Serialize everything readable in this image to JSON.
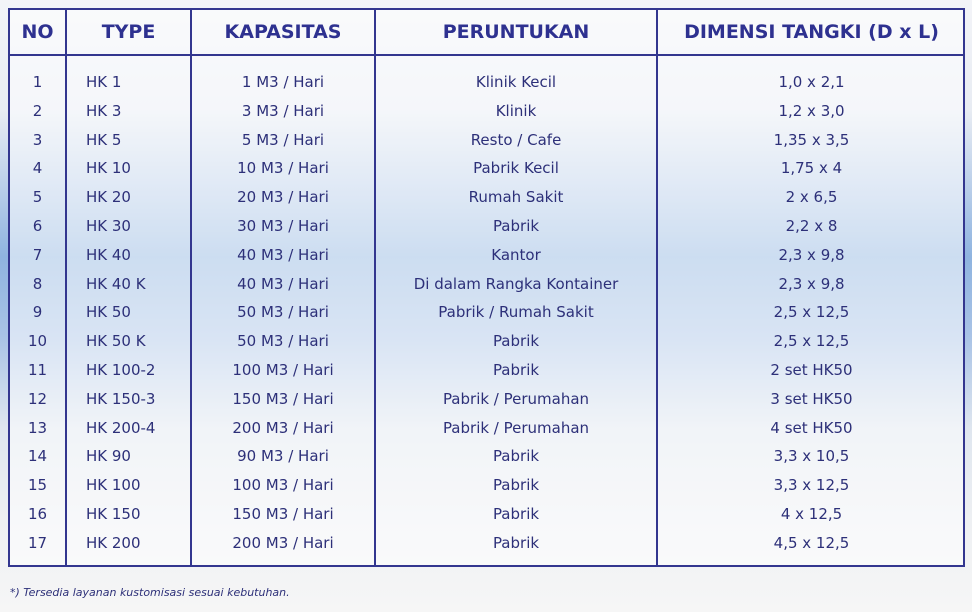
{
  "table": {
    "headers": [
      "NO",
      "TYPE",
      "KAPASITAS",
      "PERUNTUKAN",
      "DIMENSI TANGKI (D x L)"
    ],
    "rows": [
      [
        "1",
        "HK 1",
        "1 M3 / Hari",
        "Klinik Kecil",
        "1,0 x 2,1"
      ],
      [
        "2",
        "HK 3",
        "3 M3 / Hari",
        "Klinik",
        "1,2 x 3,0"
      ],
      [
        "3",
        "HK 5",
        "5 M3 / Hari",
        "Resto / Cafe",
        "1,35 x 3,5"
      ],
      [
        "4",
        "HK 10",
        "10 M3 / Hari",
        "Pabrik Kecil",
        "1,75 x 4"
      ],
      [
        "5",
        "HK 20",
        "20 M3 / Hari",
        "Rumah Sakit",
        "2 x 6,5"
      ],
      [
        "6",
        "HK 30",
        "30 M3 / Hari",
        "Pabrik",
        "2,2 x 8"
      ],
      [
        "7",
        "HK 40",
        "40 M3 / Hari",
        "Kantor",
        "2,3 x 9,8"
      ],
      [
        "8",
        "HK 40 K",
        "40 M3 / Hari",
        "Di dalam Rangka Kontainer",
        "2,3 x 9,8"
      ],
      [
        "9",
        "HK 50",
        "50 M3 / Hari",
        "Pabrik / Rumah Sakit",
        "2,5 x 12,5"
      ],
      [
        "10",
        "HK 50 K",
        "50 M3 / Hari",
        "Pabrik",
        "2,5 x 12,5"
      ],
      [
        "11",
        "HK 100-2",
        "100 M3 / Hari",
        "Pabrik",
        "2 set HK50"
      ],
      [
        "12",
        "HK 150-3",
        "150 M3 / Hari",
        "Pabrik / Perumahan",
        "3 set HK50"
      ],
      [
        "13",
        "HK 200-4",
        "200 M3 / Hari",
        "Pabrik / Perumahan",
        "4 set HK50"
      ],
      [
        "14",
        "HK 90",
        "90 M3 / Hari",
        "Pabrik",
        "3,3 x 10,5"
      ],
      [
        "15",
        "HK 100",
        "100 M3 / Hari",
        "Pabrik",
        "3,3 x 12,5"
      ],
      [
        "16",
        "HK 150",
        "150 M3 / Hari",
        "Pabrik",
        "4 x 12,5"
      ],
      [
        "17",
        "HK 200",
        "200 M3 / Hari",
        "Pabrik",
        "4,5 x 12,5"
      ]
    ]
  },
  "footnote": "*) Tersedia layanan kustomisasi sesuai kebutuhan.",
  "colors": {
    "border": "#33368f",
    "text": "#2d3079"
  }
}
